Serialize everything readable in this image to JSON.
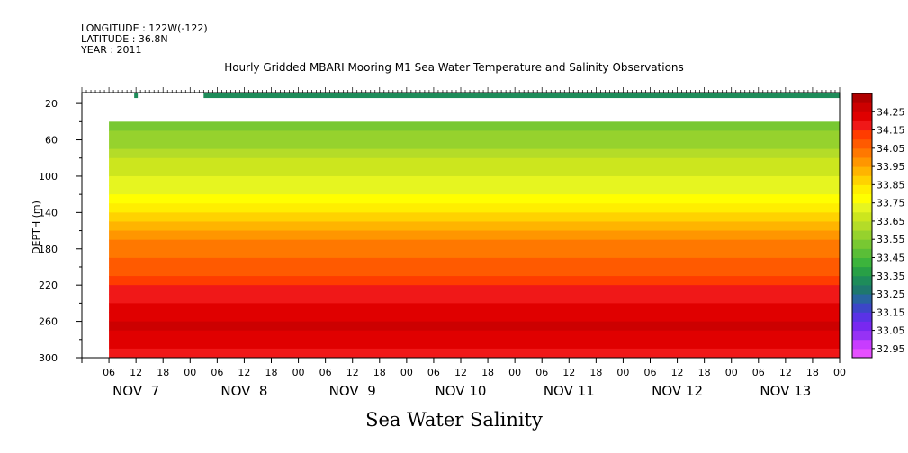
{
  "header": {
    "longitude": "LONGITUDE : 122W(-122)",
    "latitude": "LATITUDE : 36.8N",
    "year": "YEAR : 2011"
  },
  "chart_data": {
    "type": "heatmap",
    "title": "Hourly Gridded MBARI Mooring M1 Sea Water Temperature and Salinity Observations",
    "xlabel": "Sea Water Salinity",
    "ylabel": "DEPTH (m)",
    "x_hours_range": [
      0,
      168
    ],
    "x_hour_tick_labels": [
      "06",
      "12",
      "18",
      "00",
      "06",
      "12",
      "18",
      "00",
      "06",
      "12",
      "18",
      "00",
      "06",
      "12",
      "18",
      "00",
      "06",
      "12",
      "18",
      "00",
      "06",
      "12",
      "18",
      "00",
      "06",
      "12",
      "18",
      "00"
    ],
    "x_day_labels": [
      "NOV  7",
      "NOV  8",
      "NOV  9",
      "NOV 10",
      "NOV 11",
      "NOV 12",
      "NOV 13"
    ],
    "ylim": [
      300,
      8
    ],
    "y_ticks": [
      20,
      60,
      100,
      140,
      180,
      220,
      260,
      300
    ],
    "colorbar_levels": [
      "34.25",
      "34.15",
      "34.05",
      "33.95",
      "33.85",
      "33.75",
      "33.65",
      "33.55",
      "33.45",
      "33.35",
      "33.25",
      "33.15",
      "33.05",
      "32.95"
    ],
    "colorbar_colors": [
      "#b00000",
      "#cc0000",
      "#e00000",
      "#f01818",
      "#ff3c00",
      "#ff5a00",
      "#ff7800",
      "#ff9600",
      "#ffb400",
      "#ffd200",
      "#ffee00",
      "#ffff00",
      "#e6f520",
      "#cce61e",
      "#b4dc28",
      "#96d22d",
      "#78c832",
      "#5abe37",
      "#3cb43c",
      "#28a046",
      "#1e8c5a",
      "#1e786e",
      "#2864a0",
      "#3c46c8",
      "#5a32e6",
      "#7828f0",
      "#9632f5",
      "#c83cff",
      "#e650ff"
    ],
    "depth_bands": [
      {
        "depth_from": 40,
        "depth_to": 50,
        "value": 33.5
      },
      {
        "depth_from": 50,
        "depth_to": 60,
        "value": 33.55
      },
      {
        "depth_from": 60,
        "depth_to": 70,
        "value": 33.58
      },
      {
        "depth_from": 70,
        "depth_to": 80,
        "value": 33.62
      },
      {
        "depth_from": 80,
        "depth_to": 90,
        "value": 33.65
      },
      {
        "depth_from": 90,
        "depth_to": 100,
        "value": 33.68
      },
      {
        "depth_from": 100,
        "depth_to": 110,
        "value": 33.7
      },
      {
        "depth_from": 110,
        "depth_to": 120,
        "value": 33.73
      },
      {
        "depth_from": 120,
        "depth_to": 130,
        "value": 33.77
      },
      {
        "depth_from": 130,
        "depth_to": 140,
        "value": 33.82
      },
      {
        "depth_from": 140,
        "depth_to": 150,
        "value": 33.88
      },
      {
        "depth_from": 150,
        "depth_to": 160,
        "value": 33.93
      },
      {
        "depth_from": 160,
        "depth_to": 170,
        "value": 33.97
      },
      {
        "depth_from": 170,
        "depth_to": 180,
        "value": 34.0
      },
      {
        "depth_from": 180,
        "depth_to": 190,
        "value": 34.03
      },
      {
        "depth_from": 190,
        "depth_to": 200,
        "value": 34.06
      },
      {
        "depth_from": 200,
        "depth_to": 210,
        "value": 34.09
      },
      {
        "depth_from": 210,
        "depth_to": 220,
        "value": 34.12
      },
      {
        "depth_from": 220,
        "depth_to": 230,
        "value": 34.15
      },
      {
        "depth_from": 230,
        "depth_to": 240,
        "value": 34.18
      },
      {
        "depth_from": 240,
        "depth_to": 250,
        "value": 34.21
      },
      {
        "depth_from": 250,
        "depth_to": 260,
        "value": 34.24
      },
      {
        "depth_from": 260,
        "depth_to": 270,
        "value": 34.25
      },
      {
        "depth_from": 270,
        "depth_to": 280,
        "value": 34.24
      },
      {
        "depth_from": 280,
        "depth_to": 290,
        "value": 34.21
      },
      {
        "depth_from": 290,
        "depth_to": 300,
        "value": 34.18
      }
    ],
    "surface_strip": {
      "depth_from": 8,
      "depth_to": 14,
      "value": 33.3,
      "start_hour": 27
    },
    "surface_blip": {
      "hour": 12,
      "value": 33.3
    },
    "data_start_hour": 6,
    "data_top_depth": 40
  }
}
